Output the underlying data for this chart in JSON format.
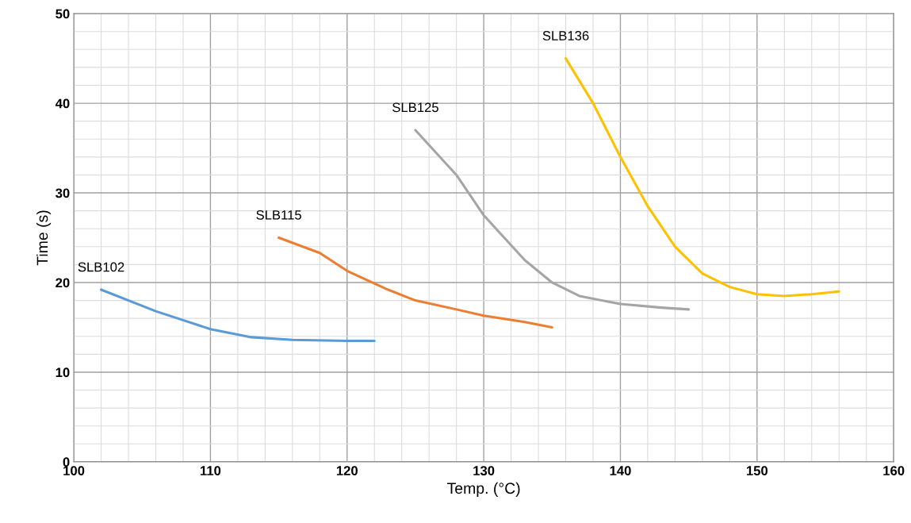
{
  "chart_data": {
    "type": "line",
    "xlabel": "Temp. (°C)",
    "ylabel": "Time (s)",
    "xlim": [
      100,
      160
    ],
    "xticks": [
      100,
      110,
      120,
      130,
      140,
      150,
      160
    ],
    "ylim": [
      0,
      50
    ],
    "yticks": [
      0,
      10,
      20,
      30,
      40,
      50
    ],
    "grid": true,
    "legend": false,
    "marker": "none",
    "line_style": "solid",
    "series": [
      {
        "name": "SLB102",
        "color": "#5b9bd5",
        "x": [
          102,
          106,
          110,
          113,
          116,
          120,
          122
        ],
        "values": [
          19.2,
          16.8,
          14.8,
          13.9,
          13.6,
          13.5,
          13.5
        ]
      },
      {
        "name": "SLB115",
        "color": "#ed7d31",
        "x": [
          115,
          118,
          120,
          123,
          125,
          128,
          130,
          133,
          135
        ],
        "values": [
          25,
          23.3,
          21.3,
          19.2,
          18.0,
          17.0,
          16.3,
          15.6,
          15.0
        ]
      },
      {
        "name": "SLB125",
        "color": "#a5a5a5",
        "x": [
          125,
          128,
          130,
          133,
          135,
          137,
          140,
          143,
          145
        ],
        "values": [
          37,
          32,
          27.5,
          22.5,
          20,
          18.5,
          17.6,
          17.2,
          17.0
        ]
      },
      {
        "name": "SLB136",
        "color": "#ffc000",
        "x": [
          136,
          138,
          140,
          142,
          144,
          146,
          148,
          150,
          152,
          154,
          156
        ],
        "values": [
          45,
          40,
          34,
          28.5,
          24,
          21,
          19.5,
          18.7,
          18.5,
          18.7,
          19.0
        ]
      }
    ]
  }
}
